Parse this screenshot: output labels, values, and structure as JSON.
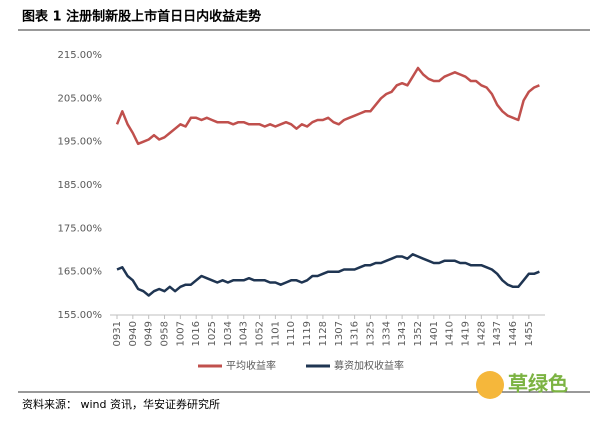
{
  "chart_data": {
    "type": "line",
    "title": "图表 1 注册制新股上市首日日内收益走势",
    "source": "资料来源： wind 资讯，华安证券研究所",
    "watermark": "草绿色",
    "categories": [
      "0931",
      null,
      null,
      "0940",
      null,
      null,
      "0949",
      null,
      null,
      "0958",
      null,
      null,
      "1007",
      null,
      null,
      "1016",
      null,
      null,
      "1025",
      null,
      null,
      "1034",
      null,
      null,
      "1043",
      null,
      null,
      "1052",
      null,
      null,
      "1101",
      null,
      null,
      "1110",
      null,
      null,
      "1119",
      null,
      null,
      "1128",
      null,
      null,
      "1307",
      null,
      null,
      "1316",
      null,
      null,
      "1325",
      null,
      null,
      "1334",
      null,
      null,
      "1343",
      null,
      null,
      "1352",
      null,
      null,
      "1401",
      null,
      null,
      "1410",
      null,
      null,
      "1419",
      null,
      null,
      "1428",
      null,
      null,
      "1437",
      null,
      null,
      "1446",
      null,
      null,
      "1455",
      null,
      null
    ],
    "series": [
      {
        "name": "平均收益率",
        "color": "#c0504d",
        "values": [
          199,
          202,
          199,
          197,
          194.5,
          195,
          195.5,
          196.5,
          195.5,
          196,
          197,
          198,
          199,
          198.5,
          200.5,
          200.5,
          200,
          200.5,
          200,
          199.5,
          199.5,
          199.5,
          199,
          199.5,
          199.5,
          199,
          199,
          199,
          198.5,
          199,
          198.5,
          199,
          199.5,
          199,
          198,
          199,
          198.5,
          199.5,
          200,
          200,
          200.5,
          199.5,
          199,
          200,
          200.5,
          201,
          201.5,
          202,
          202,
          203.5,
          205,
          206,
          206.5,
          208,
          208.5,
          208,
          210,
          212,
          210.5,
          209.5,
          209,
          209,
          210,
          210.5,
          211,
          210.5,
          210,
          209,
          209,
          208,
          207.5,
          206,
          203.5,
          202,
          201,
          200.5,
          200,
          204.5,
          206.5,
          207.5,
          208
        ]
      },
      {
        "name": "募资加权收益率",
        "color": "#1f3552",
        "values": [
          165.5,
          166,
          164,
          163,
          161,
          160.5,
          159.5,
          160.5,
          161,
          160.5,
          161.5,
          160.5,
          161.5,
          162,
          162,
          163,
          164,
          163.5,
          163,
          162.5,
          163,
          162.5,
          163,
          163,
          163,
          163.5,
          163,
          163,
          163,
          162.5,
          162.5,
          162,
          162.5,
          163,
          163,
          162.5,
          163,
          164,
          164,
          164.5,
          165,
          165,
          165,
          165.5,
          165.5,
          165.5,
          166,
          166.5,
          166.5,
          167,
          167,
          167.5,
          168,
          168.5,
          168.5,
          168,
          169,
          168.5,
          168,
          167.5,
          167,
          167,
          167.5,
          167.5,
          167.5,
          167,
          167,
          166.5,
          166.5,
          166.5,
          166,
          165.5,
          164.5,
          163,
          162,
          161.5,
          161.5,
          163,
          164.5,
          164.5,
          165
        ]
      }
    ],
    "ylim": [
      155,
      215
    ],
    "yticks": [
      {
        "value": 155,
        "label": "155.00%"
      },
      {
        "value": 165,
        "label": "165.00%"
      },
      {
        "value": 175,
        "label": "175.00%"
      },
      {
        "value": 185,
        "label": "185.00%"
      },
      {
        "value": 195,
        "label": "195.00%"
      },
      {
        "value": 205,
        "label": "205.00%"
      },
      {
        "value": 215,
        "label": "215.00%"
      }
    ],
    "grid": false
  }
}
